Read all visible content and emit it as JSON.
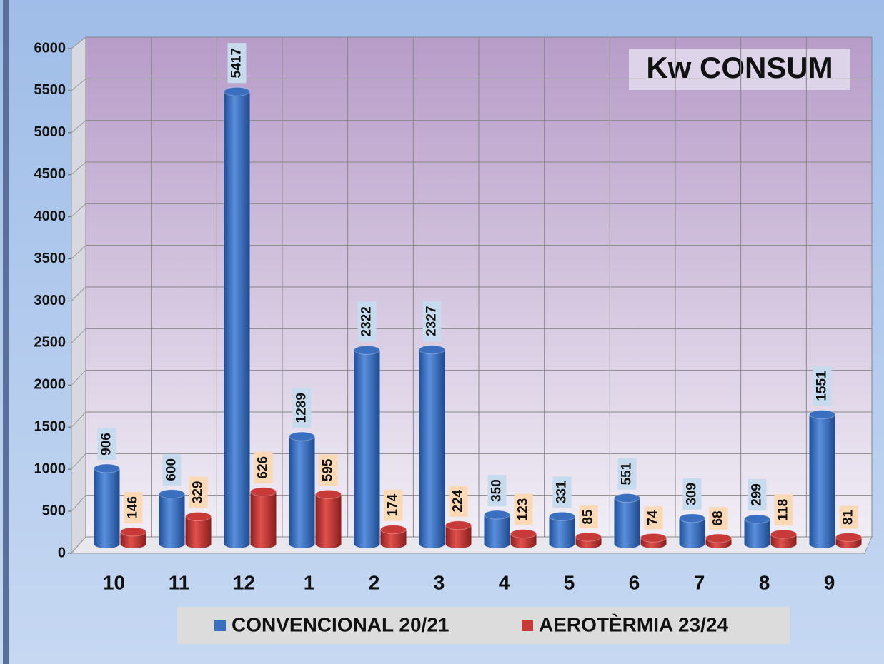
{
  "chart_data": {
    "type": "bar",
    "title": "Kw  CONSUM",
    "categories": [
      "10",
      "11",
      "12",
      "1",
      "2",
      "3",
      "4",
      "5",
      "6",
      "7",
      "8",
      "9"
    ],
    "series": [
      {
        "name": "CONVENCIONAL 20/21",
        "color": "#3a6fc0",
        "values": [
          906,
          600,
          5417,
          1289,
          2322,
          2327,
          350,
          331,
          551,
          309,
          299,
          1551
        ]
      },
      {
        "name": "AEROTÈRMIA 23/24",
        "color": "#c83a38",
        "values": [
          146,
          329,
          626,
          595,
          174,
          224,
          123,
          85,
          74,
          68,
          118,
          81
        ]
      }
    ],
    "ylim": [
      0,
      6000
    ],
    "yticks": [
      0,
      500,
      1000,
      1500,
      2000,
      2500,
      3000,
      3500,
      4000,
      4500,
      5000,
      5500,
      6000
    ],
    "grid": true,
    "legend": "bottom"
  }
}
